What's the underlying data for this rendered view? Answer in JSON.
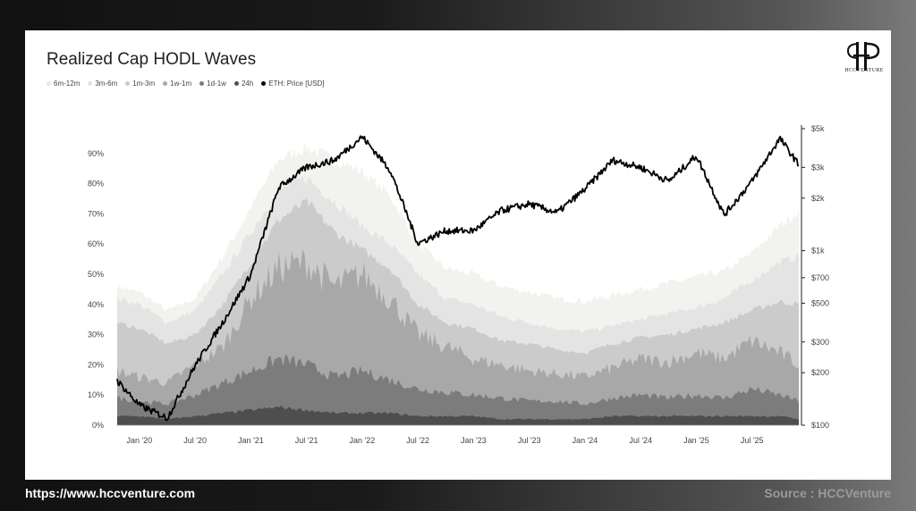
{
  "footer": {
    "url": "https://www.hccventure.com",
    "source": "Source : HCCVenture"
  },
  "logo": {
    "text": "HCCVENTURE",
    "icon": "hcc-logo-icon"
  },
  "chart_data": {
    "type": "area",
    "title": "Realized Cap HODL Waves",
    "legend_placement": "top-left",
    "grid": false,
    "x_tick_labels": [
      "Jan '20",
      "Jul '20",
      "Jan '21",
      "Jul '21",
      "Jan '22",
      "Jul '22",
      "Jan '23",
      "Jul '23",
      "Jan '24",
      "Jul '24",
      "Jan '25",
      "Jul '25"
    ],
    "x_range": [
      "2019-10",
      "2025-12"
    ],
    "y_left_ticks": [
      "0%",
      "10%",
      "20%",
      "30%",
      "40%",
      "50%",
      "60%",
      "70%",
      "80%",
      "90%"
    ],
    "y_left_range": [
      0,
      100
    ],
    "y_right_ticks": [
      "$100",
      "$200",
      "$300",
      "$500",
      "$700",
      "$1k",
      "$2k",
      "$3k",
      "$5k"
    ],
    "y_right_tick_values": [
      100,
      200,
      300,
      500,
      700,
      1000,
      2000,
      3000,
      5000
    ],
    "y_right_scale": "log",
    "y_right_range": [
      100,
      5000
    ],
    "x": [
      2019.8,
      2020.0,
      2020.25,
      2020.5,
      2020.75,
      2021.0,
      2021.25,
      2021.5,
      2021.75,
      2022.0,
      2022.25,
      2022.5,
      2022.75,
      2023.0,
      2023.25,
      2023.5,
      2023.75,
      2024.0,
      2024.25,
      2024.5,
      2024.75,
      2025.0,
      2025.25,
      2025.5,
      2025.75,
      2025.92
    ],
    "series": [
      {
        "name": "6m-12m",
        "color": "#f2f3ee",
        "values": [
          46,
          44,
          38,
          42,
          56,
          72,
          88,
          92,
          88,
          84,
          76,
          60,
          52,
          50,
          46,
          44,
          42,
          41,
          43,
          45,
          47,
          49,
          51,
          57,
          66,
          71
        ]
      },
      {
        "name": "3m-6m",
        "color": "#e4e4e4",
        "values": [
          42,
          40,
          34,
          38,
          50,
          64,
          78,
          82,
          74,
          66,
          60,
          50,
          42,
          40,
          36,
          34,
          32,
          31,
          33,
          35,
          37,
          39,
          42,
          48,
          54,
          56
        ]
      },
      {
        "name": "1m-3m",
        "color": "#cbcbcb",
        "values": [
          34,
          32,
          27,
          30,
          40,
          54,
          68,
          74,
          64,
          58,
          52,
          40,
          34,
          32,
          28,
          27,
          25,
          24,
          27,
          29,
          30,
          32,
          34,
          38,
          41,
          40
        ]
      },
      {
        "name": "1w-1m",
        "color": "#a8a8a8",
        "values": [
          18,
          16,
          14,
          20,
          26,
          42,
          52,
          54,
          46,
          50,
          42,
          30,
          26,
          22,
          20,
          18,
          17,
          16,
          19,
          22,
          21,
          24,
          22,
          28,
          24,
          20
        ]
      },
      {
        "name": "1d-1w",
        "color": "#7c7c7c",
        "values": [
          9,
          8,
          7,
          10,
          14,
          18,
          22,
          20,
          16,
          18,
          15,
          12,
          11,
          10,
          9,
          8,
          8,
          7,
          9,
          10,
          9,
          10,
          9,
          12,
          10,
          8
        ]
      },
      {
        "name": "24h",
        "color": "#4e4e4e",
        "values": [
          3,
          3,
          2,
          3,
          4,
          5,
          6,
          5,
          4,
          4,
          4,
          3,
          3,
          3,
          2,
          2,
          2,
          2,
          3,
          3,
          3,
          3,
          3,
          3,
          3,
          2
        ]
      },
      {
        "name": "ETH: Price [USD]",
        "color": "#000000",
        "axis": "right",
        "values": [
          180,
          130,
          110,
          220,
          390,
          730,
          2300,
          3000,
          3300,
          4500,
          2900,
          1100,
          1300,
          1300,
          1700,
          1850,
          1650,
          2250,
          3300,
          3000,
          2500,
          3500,
          1600,
          2500,
          4400,
          3100
        ]
      }
    ]
  }
}
